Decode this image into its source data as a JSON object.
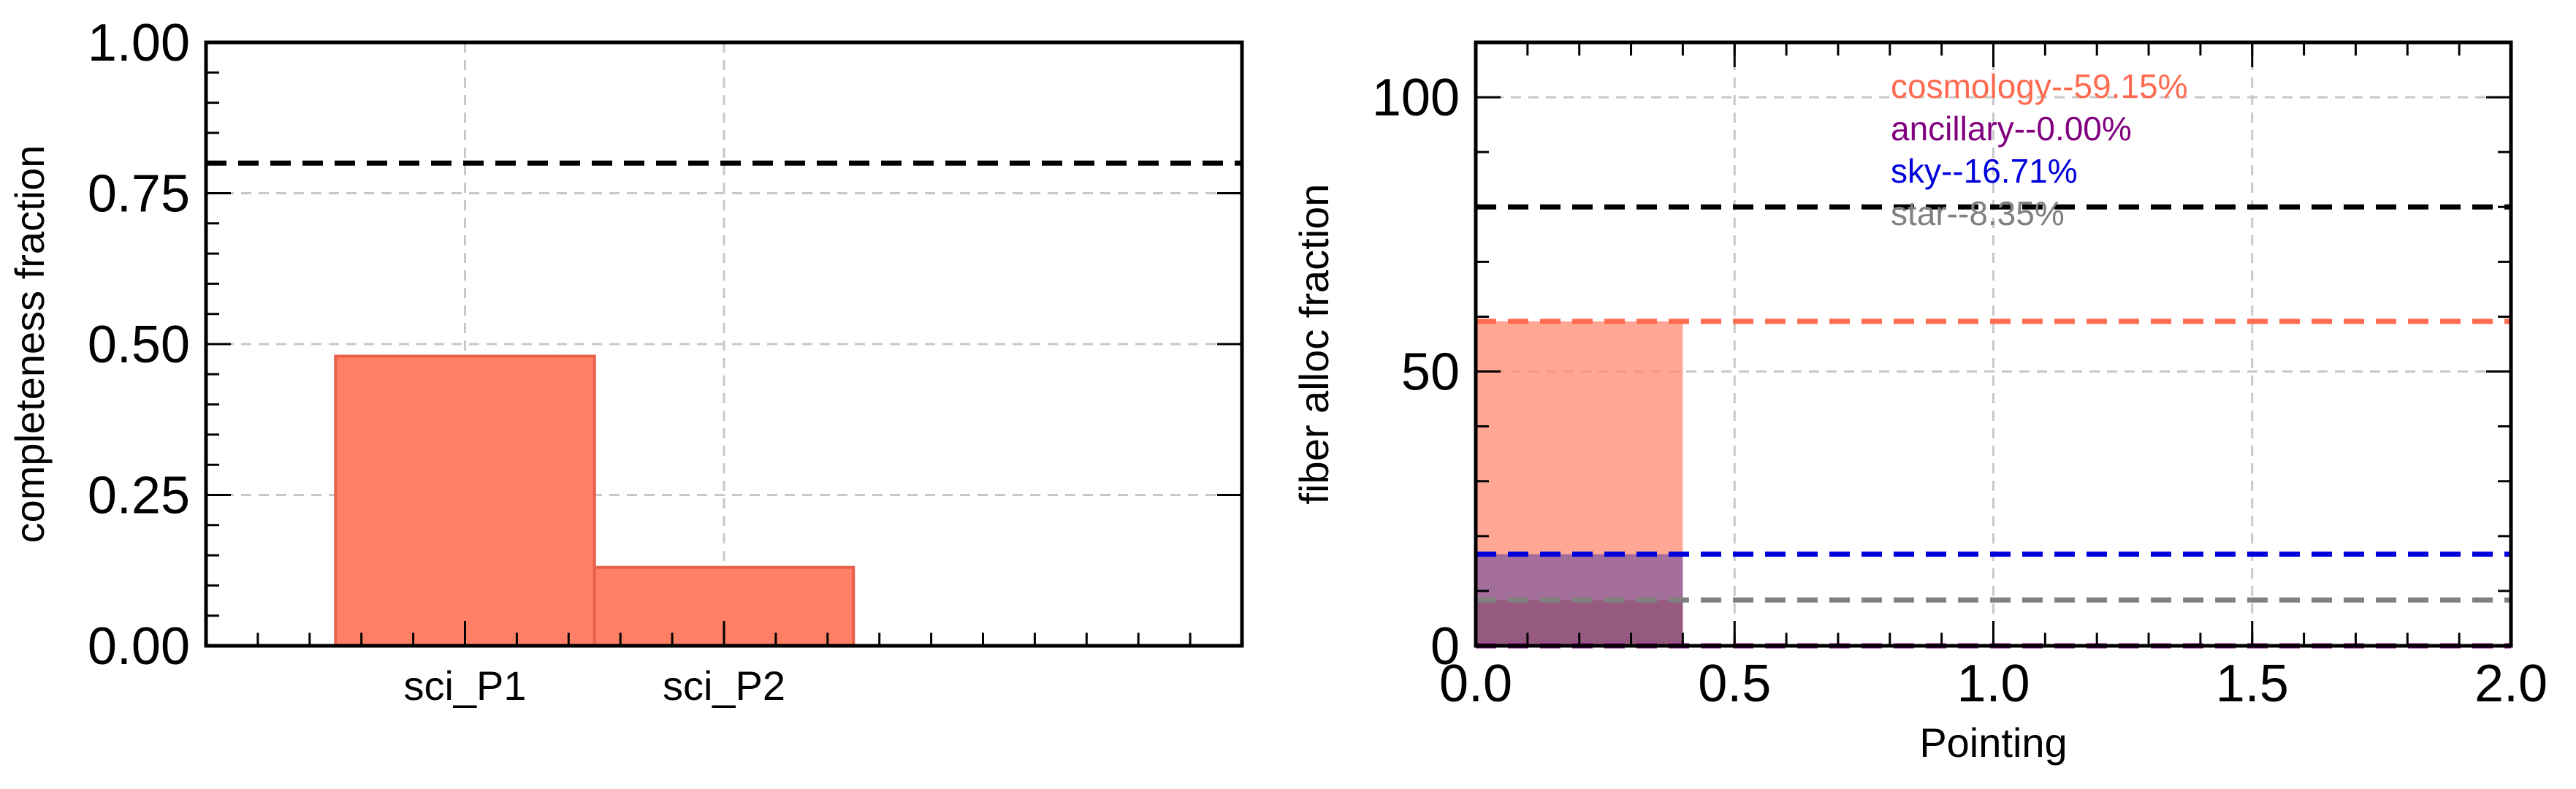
{
  "charts": {
    "left": {
      "type": "bar",
      "categories": [
        "sci_P1",
        "sci_P2"
      ],
      "values": [
        0.48,
        0.13
      ],
      "ylabel": "completeness fraction",
      "ylim": [
        0,
        1.0
      ],
      "xlim": [
        -1,
        3
      ],
      "bar_positions": [
        0,
        1
      ],
      "yticks": [
        0.0,
        0.25,
        0.5,
        0.75,
        1.0
      ],
      "ytick_labels": [
        "0.00",
        "0.25",
        "0.50",
        "0.75",
        "1.00"
      ],
      "reference_line": 0.8,
      "grid": true,
      "bar_color": "#ff7f66",
      "bar_edge_color": "#e8604a"
    },
    "right": {
      "type": "bar",
      "xlabel": "Pointing",
      "ylabel": "fiber alloc fraction",
      "xlim": [
        0,
        2.0
      ],
      "ylim": [
        0,
        110
      ],
      "xticks": [
        0.0,
        0.5,
        1.0,
        1.5,
        2.0
      ],
      "xtick_labels": [
        "0.0",
        "0.5",
        "1.0",
        "1.5",
        "2.0"
      ],
      "yticks": [
        0,
        50,
        100
      ],
      "ytick_labels": [
        "0",
        "50",
        "100"
      ],
      "reference_line": 80,
      "grid": true,
      "bars": [
        {
          "name": "cosmology",
          "x_range": [
            0,
            0.4
          ],
          "value": 59.15,
          "color": "#ff8a70"
        },
        {
          "name": "ancillary",
          "x_range": [
            0,
            0.4
          ],
          "value": 0.0,
          "color": "#800080"
        },
        {
          "name": "sky",
          "x_range": [
            0,
            0.4
          ],
          "value": 16.71,
          "color": "#5a3fa0"
        },
        {
          "name": "star",
          "x_range": [
            0,
            0.4
          ],
          "value": 8.35,
          "color": "#8a4a6a"
        }
      ],
      "series": [
        {
          "name": "cosmology",
          "value": 59.15,
          "color": "#ff6a50",
          "label": "cosmology--59.15%"
        },
        {
          "name": "ancillary",
          "value": 0.0,
          "color": "#800080",
          "label": "ancillary--0.00%"
        },
        {
          "name": "sky",
          "value": 16.71,
          "color": "#0000dd",
          "label": "sky--16.71%"
        },
        {
          "name": "star",
          "value": 8.35,
          "color": "#808080",
          "label": "star--8.35%"
        }
      ]
    }
  }
}
